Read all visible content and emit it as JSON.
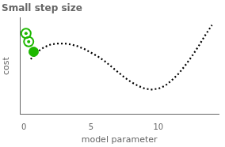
{
  "chart_data": {
    "type": "line",
    "title": "Small step size",
    "xlabel": "model parameter",
    "ylabel": "cost",
    "xlim": [
      -0.3,
      14.5
    ],
    "ylim": [
      0,
      1.05
    ],
    "xticks": [
      0,
      5,
      10
    ],
    "yticks": [],
    "grid": false,
    "tick_labels": "x",
    "series": [
      {
        "type": "line",
        "color": "black",
        "line_style": "dotted",
        "x": [
          0.5,
          1.0,
          1.5,
          2.0,
          2.5,
          3.0,
          3.5,
          4.0,
          4.5,
          5.0,
          5.5,
          6.0,
          6.5,
          7.0,
          7.5,
          8.0,
          8.5,
          9.0,
          9.5,
          10.0,
          10.5,
          11.0,
          11.5,
          12.0,
          12.5,
          13.0,
          13.5,
          14.0
        ],
        "values": [
          0.6,
          0.68,
          0.73,
          0.76,
          0.77,
          0.77,
          0.76,
          0.74,
          0.71,
          0.67,
          0.63,
          0.58,
          0.52,
          0.46,
          0.4,
          0.35,
          0.31,
          0.28,
          0.27,
          0.28,
          0.31,
          0.37,
          0.44,
          0.53,
          0.63,
          0.74,
          0.86,
          0.97
        ]
      },
      {
        "type": "scatter",
        "color": "#1db800",
        "marker": "ring",
        "x": [
          0.15,
          0.35
        ],
        "values": [
          0.88,
          0.79
        ]
      },
      {
        "type": "scatter",
        "color": "#1db800",
        "marker": "circle",
        "x": [
          0.72
        ],
        "values": [
          0.68
        ]
      }
    ]
  }
}
